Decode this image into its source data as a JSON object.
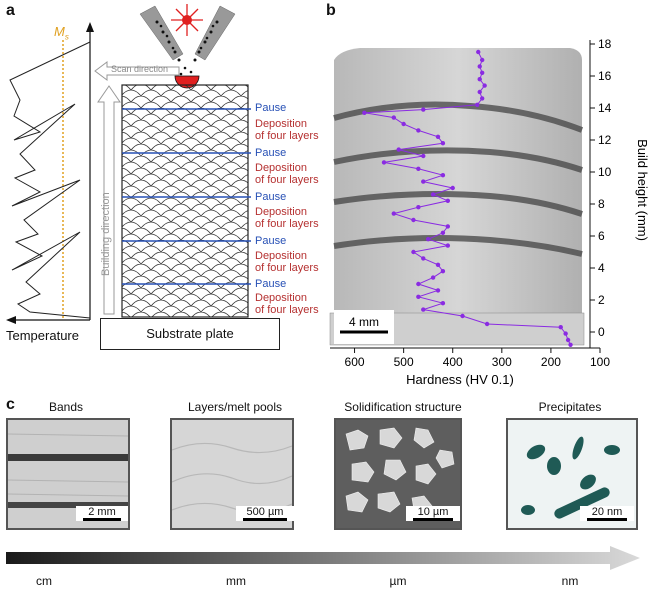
{
  "panel_a": {
    "letter": "a",
    "ms_label": "M",
    "ms_sub": "s",
    "temperature_label": "Temperature",
    "scan_direction": "Scan direction",
    "building_direction": "Building direction",
    "substrate": "Substrate plate",
    "pause_labels": [
      "Pause",
      "Pause",
      "Pause",
      "Pause",
      "Pause"
    ],
    "deposition_labels": [
      {
        "line1": "Deposition",
        "line2": "of four layers"
      },
      {
        "line1": "Deposition",
        "line2": "of four layers"
      },
      {
        "line1": "Deposition",
        "line2": "of four layers"
      },
      {
        "line1": "Deposition",
        "line2": "of four layers"
      },
      {
        "line1": "Deposition",
        "line2": "of four layers"
      }
    ],
    "colors": {
      "pause": "#2750b5",
      "deposition": "#b53030",
      "ms_line": "#e0a020",
      "laser": "#e02020"
    }
  },
  "panel_b": {
    "letter": "b",
    "scale_bar": "4 mm",
    "chart_data": {
      "type": "line",
      "xlabel": "Hardness (HV 0.1)",
      "ylabel": "Build height (mm)",
      "xlim": [
        650,
        100
      ],
      "ylim": [
        -1,
        18
      ],
      "x_reversed": true,
      "x_ticks": [
        600,
        500,
        400,
        300,
        200,
        100
      ],
      "y_ticks": [
        0,
        2,
        4,
        6,
        8,
        10,
        12,
        14,
        16,
        18
      ],
      "series": [
        {
          "color": "#8a2be2",
          "points": [
            [
              160,
              -0.8
            ],
            [
              165,
              -0.5
            ],
            [
              170,
              -0.1
            ],
            [
              180,
              0.3
            ],
            [
              330,
              0.5
            ],
            [
              380,
              1.0
            ],
            [
              460,
              1.4
            ],
            [
              420,
              1.8
            ],
            [
              470,
              2.2
            ],
            [
              430,
              2.6
            ],
            [
              470,
              3.0
            ],
            [
              440,
              3.4
            ],
            [
              420,
              3.8
            ],
            [
              430,
              4.2
            ],
            [
              460,
              4.6
            ],
            [
              480,
              5.0
            ],
            [
              410,
              5.4
            ],
            [
              450,
              5.8
            ],
            [
              420,
              6.2
            ],
            [
              410,
              6.6
            ],
            [
              480,
              7.0
            ],
            [
              520,
              7.4
            ],
            [
              470,
              7.8
            ],
            [
              410,
              8.2
            ],
            [
              440,
              8.6
            ],
            [
              400,
              9.0
            ],
            [
              460,
              9.4
            ],
            [
              420,
              9.8
            ],
            [
              470,
              10.2
            ],
            [
              540,
              10.6
            ],
            [
              460,
              11.0
            ],
            [
              510,
              11.4
            ],
            [
              420,
              11.8
            ],
            [
              430,
              12.2
            ],
            [
              470,
              12.6
            ],
            [
              500,
              13.0
            ],
            [
              520,
              13.4
            ],
            [
              580,
              13.7
            ],
            [
              460,
              13.9
            ],
            [
              350,
              14.2
            ],
            [
              340,
              14.6
            ],
            [
              345,
              15.0
            ],
            [
              335,
              15.4
            ],
            [
              345,
              15.8
            ],
            [
              340,
              16.2
            ],
            [
              345,
              16.6
            ],
            [
              340,
              17.0
            ],
            [
              348,
              17.5
            ]
          ]
        }
      ]
    }
  },
  "panel_c": {
    "letter": "c",
    "items": [
      {
        "title": "Bands",
        "scale": "2 mm"
      },
      {
        "title": "Layers/melt pools",
        "scale": "500 µm"
      },
      {
        "title": "Solidification structure",
        "scale": "10 µm"
      },
      {
        "title": "Precipitates",
        "scale": "20 nm"
      }
    ],
    "scale_axis": [
      "cm",
      "mm",
      "µm",
      "nm"
    ]
  }
}
